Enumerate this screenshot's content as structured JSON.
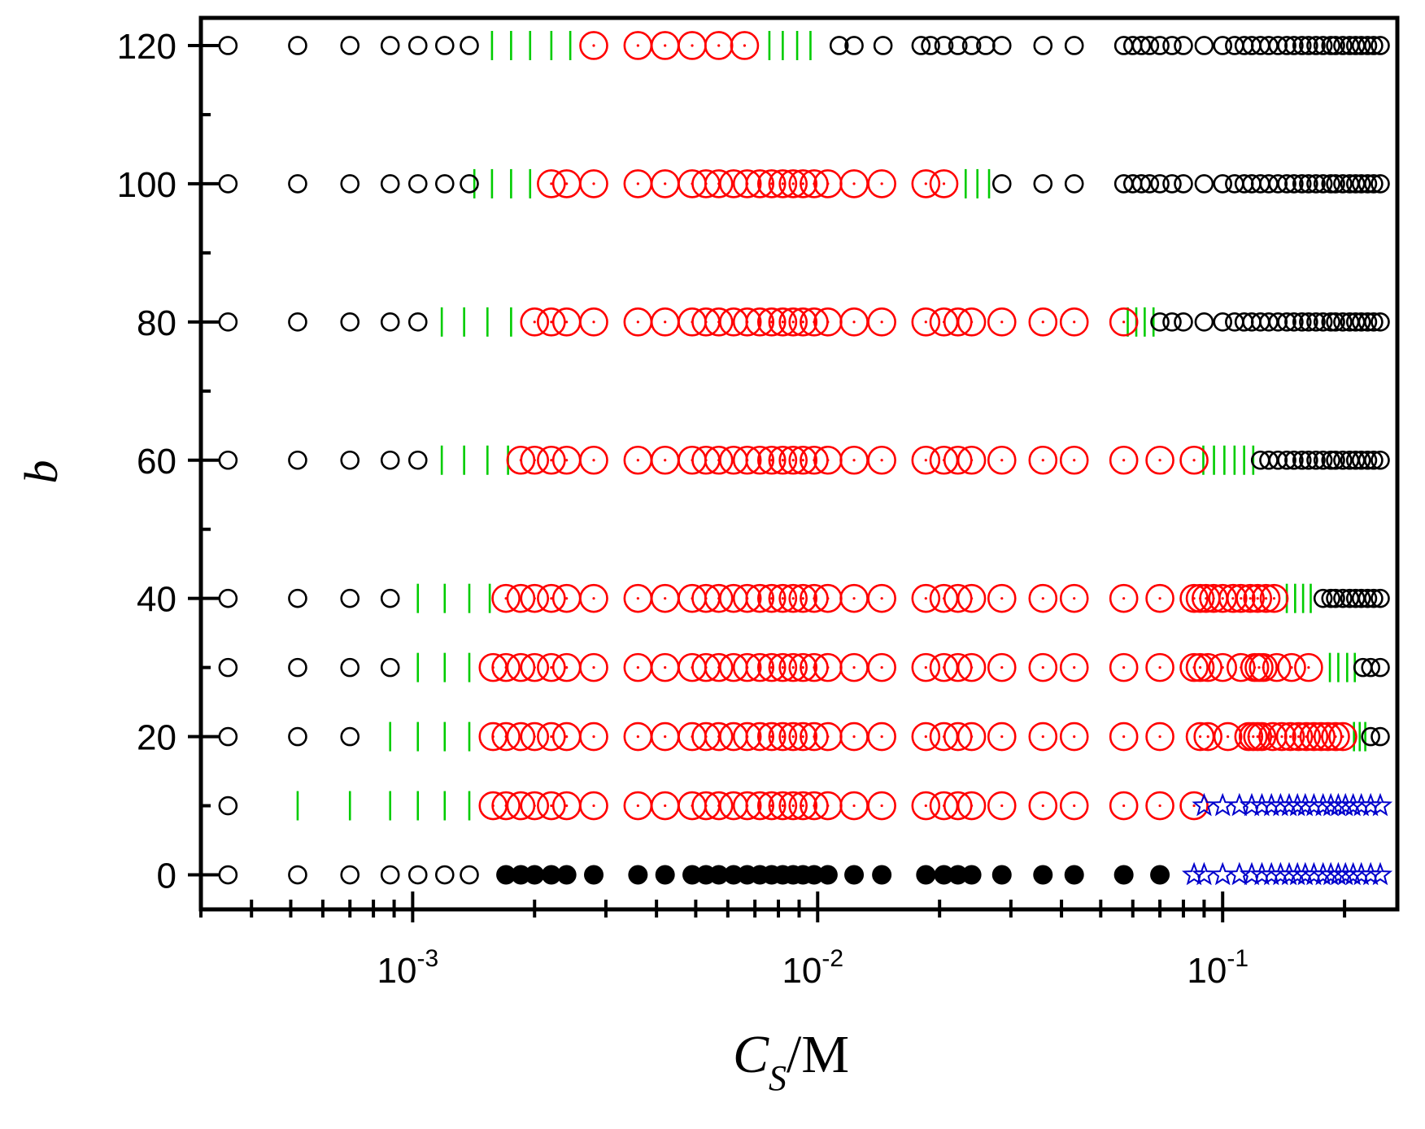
{
  "chart_data": {
    "type": "scatter",
    "title": "",
    "xlabel": "C_S/M",
    "xlabel_parts": {
      "main": "C",
      "sub": "S",
      "tail": "/M"
    },
    "ylabel": "b",
    "xscale": "log",
    "xlim": [
      0.0003,
      0.27
    ],
    "ylim": [
      -5,
      124
    ],
    "x_ticks": [
      {
        "value": 0.001,
        "base": "10",
        "exp": "-3"
      },
      {
        "value": 0.01,
        "base": "10",
        "exp": "-2"
      },
      {
        "value": 0.1,
        "base": "10",
        "exp": "-1"
      }
    ],
    "y_ticks": [
      0,
      20,
      40,
      60,
      80,
      100,
      120
    ],
    "y_ticks_unlabeled": [
      10,
      30,
      50,
      70,
      90,
      110
    ],
    "grid": false,
    "legend": "none",
    "colors": {
      "open_black": "#000000",
      "red": "#ff0000",
      "green": "#00cc00",
      "filled_black": "#000000",
      "blue": "#0000cc"
    },
    "marker_styles": {
      "open_black": "small open circle",
      "red": "large open circle with center dot",
      "green": "vertical line",
      "filled_black": "filled circle",
      "blue": "open star"
    },
    "series": [
      {
        "style": "open_black",
        "y": 120,
        "x": [
          0.00035,
          0.00052,
          0.0007,
          0.00088,
          0.00103,
          0.0012,
          0.00138,
          0.0113,
          0.0123,
          0.0145,
          0.018,
          0.019,
          0.0205,
          0.0222,
          0.024,
          0.026,
          0.0285,
          0.036,
          0.043,
          0.057,
          0.06,
          0.063,
          0.066,
          0.07,
          0.075,
          0.08,
          0.09,
          0.1,
          0.107,
          0.113,
          0.118,
          0.124,
          0.13,
          0.137,
          0.144,
          0.15,
          0.157,
          0.163,
          0.17,
          0.177,
          0.185,
          0.19,
          0.198,
          0.206,
          0.213,
          0.22,
          0.228,
          0.236,
          0.245
        ]
      },
      {
        "style": "green",
        "y": 120,
        "x": [
          0.00157,
          0.00175,
          0.00195,
          0.0022,
          0.00245,
          0.0076,
          0.0082,
          0.0089,
          0.0096
        ]
      },
      {
        "style": "red",
        "y": 120,
        "x": [
          0.0028,
          0.0036,
          0.0042,
          0.0049,
          0.0057,
          0.0066
        ]
      },
      {
        "style": "open_black",
        "y": 100,
        "x": [
          0.00035,
          0.00052,
          0.0007,
          0.00088,
          0.00103,
          0.0012,
          0.00138,
          0.0285,
          0.036,
          0.043,
          0.057,
          0.06,
          0.063,
          0.066,
          0.07,
          0.075,
          0.08,
          0.09,
          0.1,
          0.107,
          0.113,
          0.118,
          0.124,
          0.13,
          0.137,
          0.144,
          0.15,
          0.157,
          0.163,
          0.17,
          0.177,
          0.185,
          0.19,
          0.198,
          0.206,
          0.213,
          0.22,
          0.228,
          0.236,
          0.245
        ]
      },
      {
        "style": "green",
        "y": 100,
        "x": [
          0.00142,
          0.00157,
          0.00175,
          0.00195,
          0.0232,
          0.0248,
          0.0265
        ]
      },
      {
        "style": "red",
        "y": 100,
        "x": [
          0.0022,
          0.0024,
          0.0028,
          0.0036,
          0.0042,
          0.0049,
          0.0053,
          0.0057,
          0.0062,
          0.0067,
          0.0072,
          0.0077,
          0.0082,
          0.0087,
          0.0092,
          0.0098,
          0.0106,
          0.0123,
          0.0144,
          0.0185,
          0.0205
        ]
      },
      {
        "style": "open_black",
        "y": 80,
        "x": [
          0.00035,
          0.00052,
          0.0007,
          0.00088,
          0.00103,
          0.07,
          0.075,
          0.08,
          0.09,
          0.1,
          0.107,
          0.113,
          0.118,
          0.124,
          0.13,
          0.137,
          0.144,
          0.15,
          0.157,
          0.163,
          0.17,
          0.177,
          0.185,
          0.19,
          0.198,
          0.206,
          0.213,
          0.22,
          0.228,
          0.236,
          0.245
        ]
      },
      {
        "style": "green",
        "y": 80,
        "x": [
          0.00118,
          0.00134,
          0.00153,
          0.00175,
          0.0583,
          0.0612,
          0.0642,
          0.0675
        ]
      },
      {
        "style": "red",
        "y": 80,
        "x": [
          0.002,
          0.0022,
          0.0024,
          0.0028,
          0.0036,
          0.0042,
          0.0049,
          0.0053,
          0.0057,
          0.0062,
          0.0067,
          0.0072,
          0.0077,
          0.0082,
          0.0087,
          0.0092,
          0.0098,
          0.0106,
          0.0123,
          0.0144,
          0.0185,
          0.0205,
          0.0222,
          0.024,
          0.0285,
          0.036,
          0.043,
          0.057
        ]
      },
      {
        "style": "open_black",
        "y": 60,
        "x": [
          0.00035,
          0.00052,
          0.0007,
          0.00088,
          0.00103,
          0.124,
          0.13,
          0.137,
          0.144,
          0.15,
          0.157,
          0.163,
          0.17,
          0.177,
          0.185,
          0.19,
          0.198,
          0.206,
          0.213,
          0.22,
          0.228,
          0.236,
          0.245
        ]
      },
      {
        "style": "green",
        "y": 60,
        "x": [
          0.00118,
          0.00134,
          0.00153,
          0.00172,
          0.0896,
          0.0952,
          0.101,
          0.107,
          0.113,
          0.119
        ]
      },
      {
        "style": "red",
        "y": 60,
        "x": [
          0.00185,
          0.002,
          0.0022,
          0.0024,
          0.0028,
          0.0036,
          0.0042,
          0.0049,
          0.0053,
          0.0057,
          0.0062,
          0.0067,
          0.0072,
          0.0077,
          0.0082,
          0.0087,
          0.0092,
          0.0098,
          0.0106,
          0.0123,
          0.0144,
          0.0185,
          0.0205,
          0.0222,
          0.024,
          0.0285,
          0.036,
          0.043,
          0.057,
          0.07,
          0.085
        ]
      },
      {
        "style": "open_black",
        "y": 40,
        "x": [
          0.00035,
          0.00052,
          0.0007,
          0.00088,
          0.177,
          0.185,
          0.19,
          0.198,
          0.206,
          0.213,
          0.22,
          0.228,
          0.236,
          0.245
        ]
      },
      {
        "style": "green",
        "y": 40,
        "x": [
          0.00103,
          0.0012,
          0.00138,
          0.00155,
          0.144,
          0.151,
          0.158,
          0.165
        ]
      },
      {
        "style": "red",
        "y": 40,
        "x": [
          0.0017,
          0.00185,
          0.002,
          0.0022,
          0.0024,
          0.0028,
          0.0036,
          0.0042,
          0.0049,
          0.0053,
          0.0057,
          0.0062,
          0.0067,
          0.0072,
          0.0077,
          0.0082,
          0.0087,
          0.0092,
          0.0098,
          0.0106,
          0.0123,
          0.0144,
          0.0185,
          0.0205,
          0.0222,
          0.024,
          0.0285,
          0.036,
          0.043,
          0.057,
          0.07,
          0.085,
          0.088,
          0.091,
          0.095,
          0.1,
          0.106,
          0.111,
          0.117,
          0.122,
          0.128,
          0.134
        ]
      },
      {
        "style": "open_black",
        "y": 30,
        "x": [
          0.00035,
          0.00052,
          0.0007,
          0.00088,
          0.222,
          0.232,
          0.245
        ]
      },
      {
        "style": "green",
        "y": 30,
        "x": [
          0.00103,
          0.0012,
          0.00138,
          0.184,
          0.193,
          0.203,
          0.212
        ]
      },
      {
        "style": "red",
        "y": 30,
        "x": [
          0.00158,
          0.0017,
          0.00185,
          0.002,
          0.0022,
          0.0024,
          0.0028,
          0.0036,
          0.0042,
          0.0049,
          0.0053,
          0.0057,
          0.0062,
          0.0067,
          0.0072,
          0.0077,
          0.0082,
          0.0087,
          0.0092,
          0.0098,
          0.0106,
          0.0123,
          0.0144,
          0.0185,
          0.0205,
          0.0222,
          0.024,
          0.0285,
          0.036,
          0.043,
          0.057,
          0.07,
          0.085,
          0.088,
          0.092,
          0.1,
          0.111,
          0.12,
          0.123,
          0.126,
          0.136,
          0.148,
          0.163
        ]
      },
      {
        "style": "open_black",
        "y": 20,
        "x": [
          0.00035,
          0.00052,
          0.0007,
          0.232,
          0.245
        ]
      },
      {
        "style": "green",
        "y": 20,
        "x": [
          0.00088,
          0.00103,
          0.0012,
          0.00138,
          0.211,
          0.218,
          0.225
        ]
      },
      {
        "style": "red",
        "y": 20,
        "x": [
          0.00158,
          0.0017,
          0.00185,
          0.002,
          0.0022,
          0.0024,
          0.0028,
          0.0036,
          0.0042,
          0.0049,
          0.0053,
          0.0057,
          0.0062,
          0.0067,
          0.0072,
          0.0077,
          0.0082,
          0.0087,
          0.0092,
          0.0098,
          0.0106,
          0.0123,
          0.0144,
          0.0185,
          0.0205,
          0.0222,
          0.024,
          0.0285,
          0.036,
          0.043,
          0.057,
          0.07,
          0.088,
          0.092,
          0.103,
          0.116,
          0.119,
          0.122,
          0.125,
          0.133,
          0.14,
          0.147,
          0.154,
          0.161,
          0.168,
          0.175,
          0.182,
          0.19,
          0.198
        ]
      },
      {
        "style": "open_black",
        "y": 10,
        "x": [
          0.00035
        ]
      },
      {
        "style": "green",
        "y": 10,
        "x": [
          0.00052,
          0.0007,
          0.00088,
          0.00103,
          0.0012,
          0.00138
        ]
      },
      {
        "style": "red",
        "y": 10,
        "x": [
          0.00158,
          0.0017,
          0.00185,
          0.002,
          0.0022,
          0.0024,
          0.0028,
          0.0036,
          0.0042,
          0.0049,
          0.0053,
          0.0057,
          0.0062,
          0.0067,
          0.0072,
          0.0077,
          0.0082,
          0.0087,
          0.0092,
          0.0098,
          0.0106,
          0.0123,
          0.0144,
          0.0185,
          0.0205,
          0.0222,
          0.024,
          0.0285,
          0.036,
          0.043,
          0.057,
          0.07,
          0.085
        ]
      },
      {
        "style": "blue",
        "y": 10,
        "x": [
          0.09,
          0.1,
          0.11,
          0.118,
          0.125,
          0.132,
          0.139,
          0.146,
          0.153,
          0.16,
          0.168,
          0.177,
          0.185,
          0.193,
          0.201,
          0.21,
          0.22,
          0.232,
          0.245
        ]
      },
      {
        "style": "open_black",
        "y": 0,
        "x": [
          0.00035,
          0.00052,
          0.0007,
          0.00088,
          0.00103,
          0.0012,
          0.00138
        ]
      },
      {
        "style": "filled_black",
        "y": 0,
        "x": [
          0.0017,
          0.00185,
          0.002,
          0.0022,
          0.0024,
          0.0028,
          0.0036,
          0.0042,
          0.0049,
          0.0053,
          0.0057,
          0.0062,
          0.0067,
          0.0072,
          0.0077,
          0.0082,
          0.0087,
          0.0092,
          0.0098,
          0.0106,
          0.0123,
          0.0144,
          0.0185,
          0.0205,
          0.0222,
          0.024,
          0.0285,
          0.036,
          0.043,
          0.057,
          0.07
        ]
      },
      {
        "style": "blue",
        "y": 0,
        "x": [
          0.085,
          0.09,
          0.1,
          0.11,
          0.118,
          0.125,
          0.132,
          0.139,
          0.146,
          0.153,
          0.16,
          0.168,
          0.177,
          0.185,
          0.193,
          0.201,
          0.21,
          0.22,
          0.232,
          0.245
        ]
      }
    ]
  }
}
